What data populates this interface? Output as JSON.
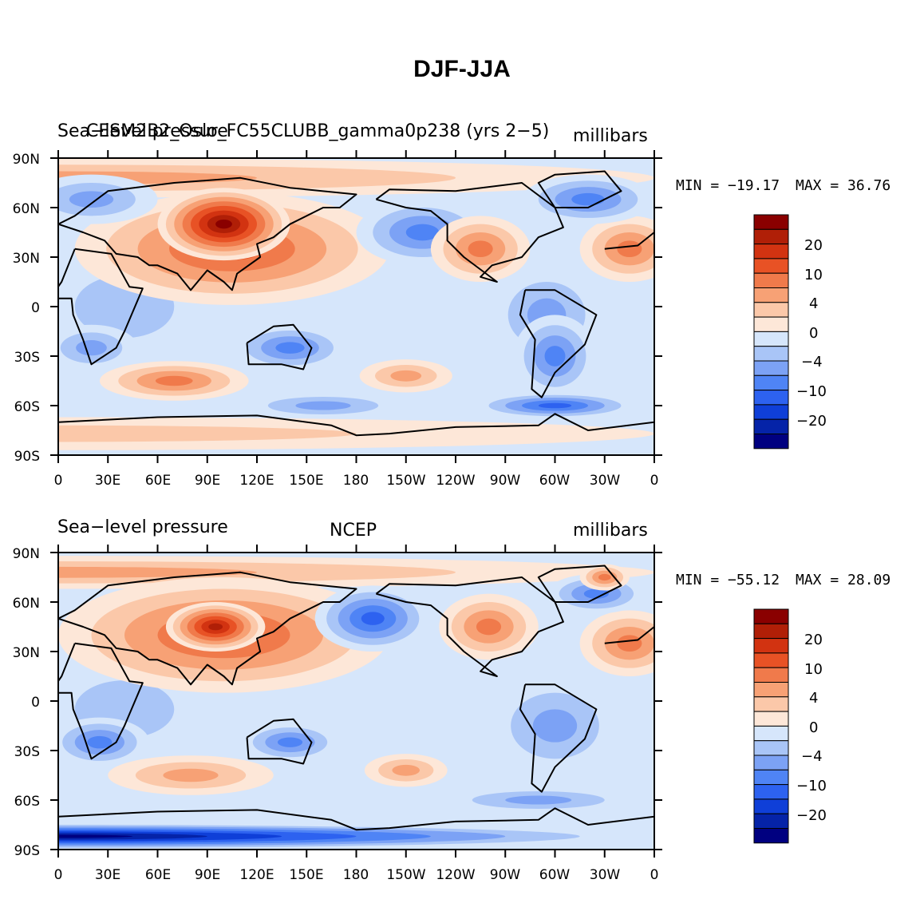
{
  "title": "DJF-JJA",
  "colors": {
    "levels": [
      "#000080",
      "#0523a8",
      "#0f3fd8",
      "#2d62f0",
      "#4f84f5",
      "#7ca2f5",
      "#a9c5f7",
      "#d6e6fb",
      "#fde7d8",
      "#fbc8a9",
      "#f7a175",
      "#f07a4b",
      "#e85225",
      "#d23311",
      "#b01f07",
      "#8a0000"
    ],
    "coast": "#000000"
  },
  "colorbar_labels": [
    "20",
    "10",
    "4",
    "0",
    "−4",
    "−10",
    "−20"
  ],
  "axes": {
    "lat_labels": [
      "90N",
      "60N",
      "30N",
      "0",
      "30S",
      "60S",
      "90S"
    ],
    "lon_labels": [
      "0",
      "30E",
      "60E",
      "90E",
      "120E",
      "150E",
      "180",
      "150W",
      "120W",
      "90W",
      "60W",
      "30W",
      "0"
    ]
  },
  "panels": [
    {
      "left_title": "Sea−level pressure",
      "center_title": "CESM2B2_Oslo_FC55CLUBB_gamma0p238 (yrs 2−5)",
      "right_title": "millibars",
      "min_label": "MIN = −19.17",
      "max_label": "MAX =  36.76"
    },
    {
      "left_title": "Sea−level pressure",
      "center_title": "NCEP",
      "right_title": "millibars",
      "min_label": "MIN = −55.12",
      "max_label": "MAX =  28.09"
    }
  ]
}
